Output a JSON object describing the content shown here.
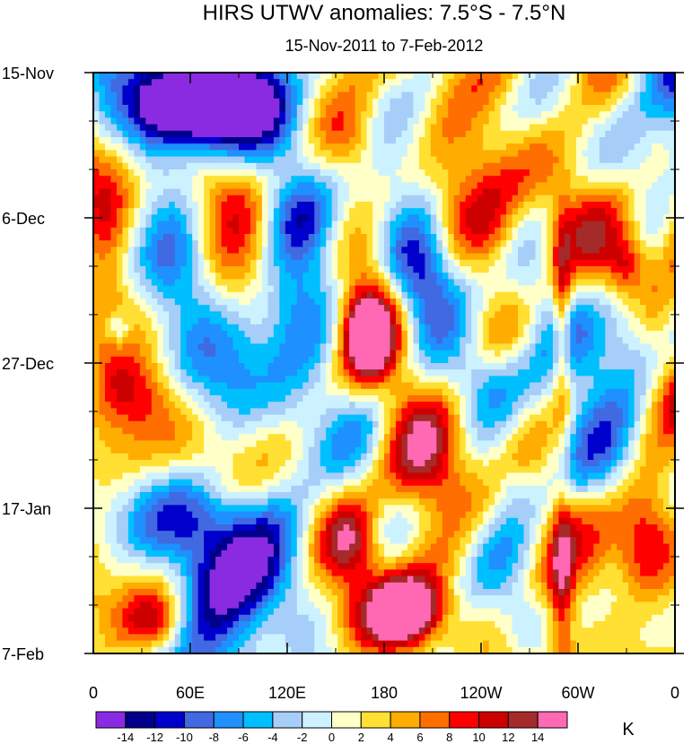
{
  "chart_data": {
    "type": "heatmap",
    "title": "HIRS UTWV anomalies: 7.5°S - 7.5°N",
    "subtitle": "15-Nov-2011 to 7-Feb-2012",
    "x_tick_labels": [
      "0",
      "60E",
      "120E",
      "180",
      "120W",
      "60W",
      "0"
    ],
    "y_tick_labels": [
      "15-Nov",
      "6-Dec",
      "27-Dec",
      "17-Jan",
      "7-Feb"
    ],
    "x_ticks_lon_east": [
      0,
      60,
      120,
      180,
      240,
      300,
      360
    ],
    "y_ticks_days": [
      0,
      21,
      42,
      63,
      84
    ],
    "xlim": [
      0,
      360
    ],
    "ylim_days": [
      0,
      84
    ],
    "colorbar": {
      "unit_label": "K",
      "levels": [
        -14,
        -12,
        -10,
        -8,
        -6,
        -4,
        -2,
        0,
        2,
        4,
        6,
        8,
        10,
        12,
        14
      ],
      "colors": [
        "#8a2be2",
        "#00008b",
        "#0000cd",
        "#4169e1",
        "#1e90ff",
        "#00bfff",
        "#a6cef8",
        "#cdf2ff",
        "#ffffc8",
        "#ffe033",
        "#ffad00",
        "#ff6e00",
        "#ff0000",
        "#cd0000",
        "#a52a2a",
        "#ff69b4"
      ]
    },
    "features": [
      {
        "lon": 72,
        "day": 5,
        "amp": -13,
        "w": 26,
        "h": 4
      },
      {
        "lon": 60,
        "day": 3,
        "amp": -8,
        "w": 30,
        "h": 6
      },
      {
        "lon": 85,
        "day": 38,
        "amp": -6,
        "w": 25,
        "h": 6
      },
      {
        "lon": 40,
        "day": 30,
        "amp": -4,
        "w": 20,
        "h": 5
      },
      {
        "lon": 85,
        "day": 72,
        "amp": -9,
        "w": 25,
        "h": 7
      },
      {
        "lon": 65,
        "day": 64,
        "amp": -6,
        "w": 18,
        "h": 5
      },
      {
        "lon": 15,
        "day": 37,
        "amp": -7,
        "w": 6,
        "h": 2
      },
      {
        "lon": 128,
        "day": 21,
        "amp": -6,
        "w": 15,
        "h": 4
      },
      {
        "lon": 200,
        "day": 28,
        "amp": -6,
        "w": 14,
        "h": 5
      },
      {
        "lon": 245,
        "day": 44,
        "amp": -6,
        "w": 18,
        "h": 4
      },
      {
        "lon": 265,
        "day": 80,
        "amp": -5,
        "w": 12,
        "h": 4
      },
      {
        "lon": 125,
        "day": 50,
        "amp": -4,
        "w": 15,
        "h": 5
      },
      {
        "lon": 300,
        "day": 5,
        "amp": -3,
        "w": 20,
        "h": 5
      },
      {
        "lon": 320,
        "day": 40,
        "amp": -3,
        "w": 20,
        "h": 6
      },
      {
        "lon": 5,
        "day": 8,
        "amp": -4,
        "w": 8,
        "h": 5
      },
      {
        "lon": 260,
        "day": 60,
        "amp": -4,
        "w": 10,
        "h": 3
      },
      {
        "lon": 170,
        "day": 38,
        "amp": 14,
        "w": 10,
        "h": 4
      },
      {
        "lon": 175,
        "day": 33,
        "amp": 10,
        "w": 18,
        "h": 7
      },
      {
        "lon": 195,
        "day": 78,
        "amp": 14,
        "w": 14,
        "h": 3
      },
      {
        "lon": 185,
        "day": 76,
        "amp": 10,
        "w": 30,
        "h": 6
      },
      {
        "lon": 160,
        "day": 68,
        "amp": 9,
        "w": 12,
        "h": 4
      },
      {
        "lon": 290,
        "day": 35,
        "amp": 9,
        "w": 4,
        "h": 10
      },
      {
        "lon": 290,
        "day": 75,
        "amp": 8,
        "w": 5,
        "h": 10
      },
      {
        "lon": 160,
        "day": 10,
        "amp": 6,
        "w": 14,
        "h": 4
      },
      {
        "lon": 230,
        "day": 10,
        "amp": 6,
        "w": 35,
        "h": 6
      },
      {
        "lon": 20,
        "day": 46,
        "amp": 9,
        "w": 18,
        "h": 4
      },
      {
        "lon": 10,
        "day": 38,
        "amp": 6,
        "w": 10,
        "h": 5
      },
      {
        "lon": 40,
        "day": 80,
        "amp": 8,
        "w": 14,
        "h": 3
      },
      {
        "lon": 350,
        "day": 36,
        "amp": 7,
        "w": 10,
        "h": 6
      },
      {
        "lon": 340,
        "day": 70,
        "amp": 6,
        "w": 12,
        "h": 6
      },
      {
        "lon": 205,
        "day": 55,
        "amp": 6,
        "w": 18,
        "h": 6
      },
      {
        "lon": 5,
        "day": 20,
        "amp": 5,
        "w": 10,
        "h": 5
      },
      {
        "lon": 100,
        "day": 55,
        "amp": 3,
        "w": 20,
        "h": 6
      },
      {
        "lon": 330,
        "day": 28,
        "amp": 7,
        "w": 8,
        "h": 3
      },
      {
        "lon": 250,
        "day": 25,
        "amp": 3,
        "w": 12,
        "h": 5
      }
    ]
  }
}
